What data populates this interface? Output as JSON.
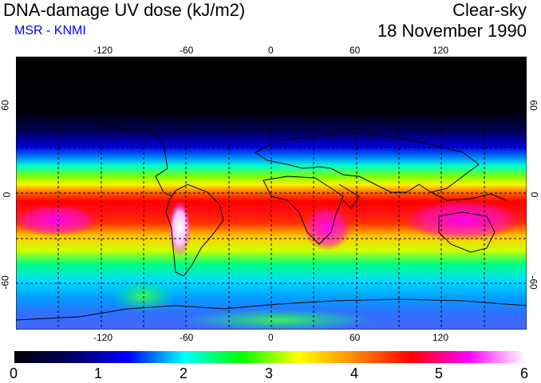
{
  "header": {
    "title": "DNA-damage UV dose (kJ/m2)",
    "source": "MSR - KNMI",
    "mode": "Clear-sky",
    "date": "18 November 1990"
  },
  "axes": {
    "lon_ticks": [
      "-120",
      "-60",
      "0",
      "60",
      "120"
    ],
    "lat_ticks": [
      "60",
      "0",
      "-60"
    ]
  },
  "colorbar": {
    "labels": [
      "0",
      "1",
      "2",
      "3",
      "4",
      "5",
      "6"
    ],
    "colors": [
      "#000000",
      "#000066",
      "#0000ff",
      "#00ffff",
      "#00ff00",
      "#ffff00",
      "#ff8800",
      "#ff0000",
      "#ff00ff",
      "#ffffff"
    ]
  }
}
